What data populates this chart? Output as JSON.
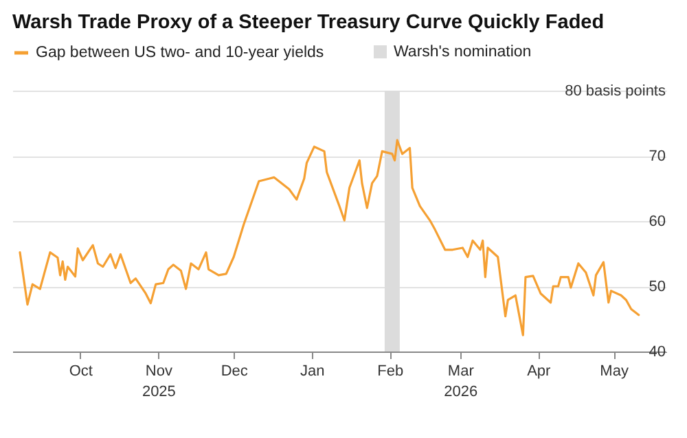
{
  "chart_data": {
    "type": "line",
    "title": "Warsh Trade Proxy of a Steeper Treasury Curve Quickly Faded",
    "x": [
      "2025-09-07",
      "2025-09-10",
      "2025-09-12",
      "2025-09-15",
      "2025-09-17",
      "2025-09-19",
      "2025-09-22",
      "2025-09-23",
      "2025-09-24",
      "2025-09-25",
      "2025-09-26",
      "2025-09-29",
      "2025-09-30",
      "2025-10-02",
      "2025-10-06",
      "2025-10-08",
      "2025-10-10",
      "2025-10-13",
      "2025-10-15",
      "2025-10-17",
      "2025-10-21",
      "2025-10-23",
      "2025-10-27",
      "2025-10-29",
      "2025-10-31",
      "2025-11-03",
      "2025-11-05",
      "2025-11-07",
      "2025-11-10",
      "2025-11-12",
      "2025-11-14",
      "2025-11-17",
      "2025-11-20",
      "2025-11-21",
      "2025-11-25",
      "2025-11-28",
      "2025-12-01",
      "2025-12-03",
      "2025-12-05",
      "2025-12-11",
      "2025-12-15",
      "2025-12-17",
      "2025-12-19",
      "2025-12-23",
      "2025-12-26",
      "2025-12-29",
      "2025-12-30",
      "2026-01-02",
      "2026-01-06",
      "2026-01-07",
      "2026-01-12",
      "2026-01-14",
      "2026-01-16",
      "2026-01-20",
      "2026-01-21",
      "2026-01-23",
      "2026-01-25",
      "2026-01-27",
      "2026-01-29",
      "2026-02-02",
      "2026-02-03",
      "2026-02-04",
      "2026-02-06",
      "2026-02-09",
      "2026-02-10",
      "2026-02-13",
      "2026-02-17",
      "2026-02-19",
      "2026-02-23",
      "2026-02-26",
      "2026-03-02",
      "2026-03-04",
      "2026-03-06",
      "2026-03-09",
      "2026-03-10",
      "2026-03-11",
      "2026-03-12",
      "2026-03-16",
      "2026-03-19",
      "2026-03-20",
      "2026-03-23",
      "2026-03-26",
      "2026-03-27",
      "2026-03-30",
      "2026-04-02",
      "2026-04-06",
      "2026-04-07",
      "2026-04-09",
      "2026-04-10",
      "2026-04-13",
      "2026-04-14",
      "2026-04-17",
      "2026-04-20",
      "2026-04-23",
      "2026-04-24",
      "2026-04-27",
      "2026-04-29",
      "2026-04-30",
      "2026-05-04",
      "2026-05-06",
      "2026-05-08",
      "2026-05-11"
    ],
    "series": [
      {
        "name": "Gap between US two- and 10-year yields",
        "color": "#f5a033",
        "values": [
          55.2,
          47.2,
          50.3,
          49.6,
          52.4,
          55.2,
          54.4,
          51.7,
          53.8,
          51.0,
          53.0,
          51.5,
          55.8,
          54.0,
          56.3,
          53.5,
          53.0,
          54.9,
          52.8,
          54.9,
          50.5,
          51.2,
          48.9,
          47.4,
          50.3,
          50.5,
          52.6,
          53.3,
          52.4,
          49.6,
          53.5,
          52.6,
          55.2,
          52.6,
          51.7,
          51.9,
          54.5,
          57.0,
          59.5,
          66.1,
          66.5,
          66.7,
          66.1,
          64.9,
          63.3,
          66.5,
          68.9,
          71.4,
          70.7,
          67.5,
          62.3,
          60.1,
          65.1,
          69.3,
          65.8,
          62.0,
          65.8,
          66.9,
          70.7,
          70.3,
          69.3,
          72.4,
          70.3,
          71.2,
          65.1,
          62.3,
          60.1,
          58.7,
          55.6,
          55.6,
          55.9,
          54.5,
          57.0,
          55.6,
          57.0,
          51.4,
          55.9,
          54.5,
          45.4,
          47.9,
          48.6,
          42.5,
          51.4,
          51.6,
          48.9,
          47.5,
          50.0,
          50.0,
          51.4,
          51.4,
          49.8,
          53.5,
          52.1,
          48.6,
          51.7,
          53.7,
          47.5,
          49.3,
          48.6,
          47.9,
          46.5,
          45.6
        ]
      }
    ],
    "xlim": [
      "2025-09-04",
      "2026-05-22"
    ],
    "xticks": [
      {
        "value": "2025-10-01",
        "label": "Oct"
      },
      {
        "value": "2025-11-01",
        "label": "Nov\n2025"
      },
      {
        "value": "2025-12-01",
        "label": "Dec"
      },
      {
        "value": "2026-01-01",
        "label": "Jan"
      },
      {
        "value": "2026-02-01",
        "label": "Feb"
      },
      {
        "value": "2026-03-01",
        "label": "Mar\n2026"
      },
      {
        "value": "2026-04-01",
        "label": "Apr"
      },
      {
        "value": "2026-05-01",
        "label": "May"
      }
    ],
    "ylim": [
      40,
      80
    ],
    "yticks": [
      40,
      50,
      60,
      70,
      {
        "value": 80,
        "label": "80 basis points"
      }
    ],
    "bands": [
      {
        "axis": "x",
        "from": "2026-01-30",
        "to": "2026-02-05",
        "label": "Warsh's nomination",
        "color": "#dcdcdc"
      }
    ],
    "grid": "y",
    "legend": "top left"
  }
}
